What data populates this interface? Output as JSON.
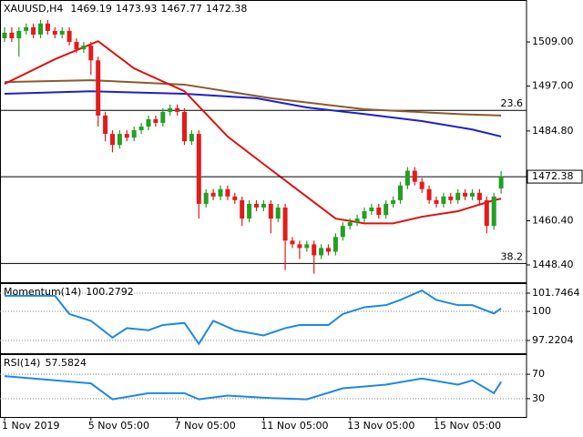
{
  "chart_data": [
    {
      "type": "candlestick",
      "symbol": "XAUUSD,H4",
      "categories": [
        "1 Nov 2019",
        null,
        null,
        null,
        null,
        null,
        null,
        null,
        null,
        null,
        null,
        null,
        "5 Nov 05:00",
        null,
        null,
        null,
        null,
        null,
        null,
        null,
        null,
        null,
        null,
        null,
        "7 Nov 05:00",
        null,
        null,
        null,
        null,
        null,
        null,
        null,
        null,
        null,
        null,
        null,
        "11 Nov 05:00",
        null,
        null,
        null,
        null,
        null,
        null,
        null,
        null,
        null,
        null,
        null,
        "13 Nov 05:00",
        null,
        null,
        null,
        null,
        null,
        null,
        null,
        null,
        null,
        null,
        null,
        "15 Nov 05:00",
        null,
        null,
        null,
        null,
        null,
        null,
        null,
        null,
        null
      ],
      "open": [
        1510,
        1511.5,
        1510,
        1512,
        1513,
        1511,
        1514,
        1512,
        1511,
        1512,
        1509,
        1507,
        1508,
        1504,
        1489,
        1484,
        1481,
        1484,
        1483,
        1485,
        1486,
        1488,
        1487,
        1490,
        1491,
        1490,
        1482,
        1484,
        1465,
        1468,
        1467,
        1469,
        1467,
        1466,
        1461,
        1465,
        1464,
        1465,
        1461,
        1464,
        1455,
        1454,
        1453,
        1454,
        1451,
        1453,
        1452,
        1456,
        1459,
        1460,
        1461,
        1463,
        1464,
        1462,
        1465,
        1466,
        1470,
        1474,
        1471,
        1469,
        1466,
        1465,
        1467,
        1466,
        1468,
        1467,
        1468,
        1466,
        1459,
        1469.19
      ],
      "high": [
        1513,
        1513,
        1513,
        1514,
        1514,
        1515,
        1515,
        1513,
        1513,
        1513,
        1510,
        1509,
        1509,
        1505,
        1490,
        1485,
        1485,
        1485,
        1486,
        1487,
        1489,
        1489,
        1491,
        1492,
        1492,
        1491,
        1485,
        1485,
        1469,
        1469,
        1470,
        1470,
        1468,
        1467,
        1466,
        1466,
        1466,
        1466,
        1465,
        1465,
        1456,
        1455,
        1455,
        1455,
        1454,
        1454,
        1457,
        1460,
        1461,
        1462,
        1464,
        1465,
        1465,
        1466,
        1467,
        1471,
        1475,
        1475,
        1472,
        1470,
        1467,
        1468,
        1468,
        1469,
        1469,
        1469,
        1469,
        1467,
        1468,
        1473.93
      ],
      "low": [
        1509,
        1509,
        1505,
        1511,
        1510,
        1510,
        1511,
        1510,
        1510,
        1508,
        1506,
        1506,
        1500,
        1486,
        1482,
        1479,
        1480,
        1482,
        1482,
        1484,
        1485,
        1486,
        1486,
        1489,
        1489,
        1481,
        1481,
        1461,
        1464,
        1466,
        1466,
        1466,
        1465,
        1459,
        1460,
        1463,
        1463,
        1457,
        1460,
        1447,
        1453,
        1450,
        1452,
        1446,
        1450,
        1451,
        1451,
        1455,
        1458,
        1459,
        1460,
        1462,
        1461,
        1461,
        1464,
        1465,
        1469,
        1470,
        1468,
        1465,
        1464,
        1464,
        1465,
        1465,
        1466,
        1466,
        1465,
        1457,
        1458,
        1467.77
      ],
      "close": [
        1511.5,
        1510,
        1512,
        1513,
        1511,
        1514,
        1512,
        1511,
        1512,
        1509,
        1507,
        1508,
        1504,
        1489,
        1484,
        1481,
        1484,
        1483,
        1485,
        1486,
        1488,
        1487,
        1490,
        1491,
        1490,
        1482,
        1484,
        1465,
        1468,
        1467,
        1469,
        1467,
        1466,
        1461,
        1465,
        1464,
        1465,
        1461,
        1464,
        1455,
        1454,
        1453,
        1454,
        1451,
        1453,
        1452,
        1456,
        1459,
        1460,
        1461,
        1463,
        1464,
        1462,
        1465,
        1466,
        1470,
        1474,
        1471,
        1469,
        1466,
        1465,
        1467,
        1466,
        1468,
        1467,
        1468,
        1466,
        1459,
        1467,
        1472.38
      ],
      "up_color": "#22a022",
      "down_color": "#e31b1b",
      "lines": [
        {
          "color": "#8b5a2b",
          "x": [
            0,
            12,
            25,
            37,
            50,
            63,
            69
          ],
          "values": [
            1498.1,
            1498.6,
            1497.4,
            1493.7,
            1490.7,
            1489.4,
            1489
          ]
        },
        {
          "color": "#1f1fcc",
          "x": [
            0,
            12,
            25,
            35,
            42,
            50,
            58,
            65,
            69
          ],
          "values": [
            1494.9,
            1495.6,
            1494.9,
            1493.7,
            1491.2,
            1489.4,
            1487.5,
            1485.2,
            1483.3
          ]
        },
        {
          "color": "#e01010",
          "x": [
            0,
            7,
            13,
            18,
            25,
            31,
            36,
            41,
            46,
            50,
            54,
            58,
            63,
            68,
            69
          ],
          "values": [
            1497.6,
            1504.3,
            1509.2,
            1501.8,
            1495.6,
            1483.3,
            1475.8,
            1468.4,
            1461,
            1459.7,
            1459.7,
            1461.5,
            1463,
            1466,
            1466.4
          ]
        }
      ],
      "levels": [
        {
          "label": "23.6",
          "value": 1490.4
        },
        {
          "label": "38.2",
          "value": 1448.8
        }
      ],
      "ylim": [
        1443.7,
        1519.9
      ],
      "yticks": [
        {
          "value": 1448.4,
          "label": "1448.40"
        },
        {
          "value": 1460.4,
          "label": "1460.40"
        },
        {
          "value": 1484.8,
          "label": "1484.80"
        },
        {
          "value": 1497,
          "label": "1497.00"
        },
        {
          "value": 1509,
          "label": "1509.00"
        }
      ],
      "grid": false
    },
    {
      "type": "line",
      "name": "Momentum(14)",
      "color": "#1e88e5",
      "x": [
        0,
        7,
        9,
        12,
        15,
        17,
        20,
        22,
        25,
        27,
        29,
        32,
        36,
        39,
        41,
        45,
        47,
        50,
        53,
        55,
        58,
        60,
        63,
        65,
        68,
        69
      ],
      "values": [
        101.5,
        101.5,
        99.75,
        99.1,
        97.5,
        98.4,
        98.2,
        98.7,
        98.9,
        96.9,
        99.1,
        98.2,
        97.7,
        98.4,
        98.7,
        98.7,
        99.75,
        100.4,
        100.6,
        101.1,
        102,
        101.1,
        100.6,
        100.6,
        99.8,
        100.2792
      ],
      "ylim": [
        96.0,
        102.53
      ],
      "yticks": [
        97.2204,
        100,
        101.7464
      ],
      "grid": true
    },
    {
      "type": "line",
      "name": "RSI(14)",
      "color": "#1e88e5",
      "x": [
        0,
        7,
        12,
        15,
        20,
        25,
        27,
        31,
        37,
        42,
        47,
        53,
        58,
        63,
        65,
        68,
        69
      ],
      "values": [
        67,
        60,
        55,
        29,
        39,
        39,
        29,
        35,
        31,
        29,
        47,
        53,
        63,
        53,
        60,
        39,
        57.5824
      ],
      "ylim": [
        0,
        100
      ],
      "yticks": [
        30,
        70
      ],
      "grid": true
    }
  ]
}
